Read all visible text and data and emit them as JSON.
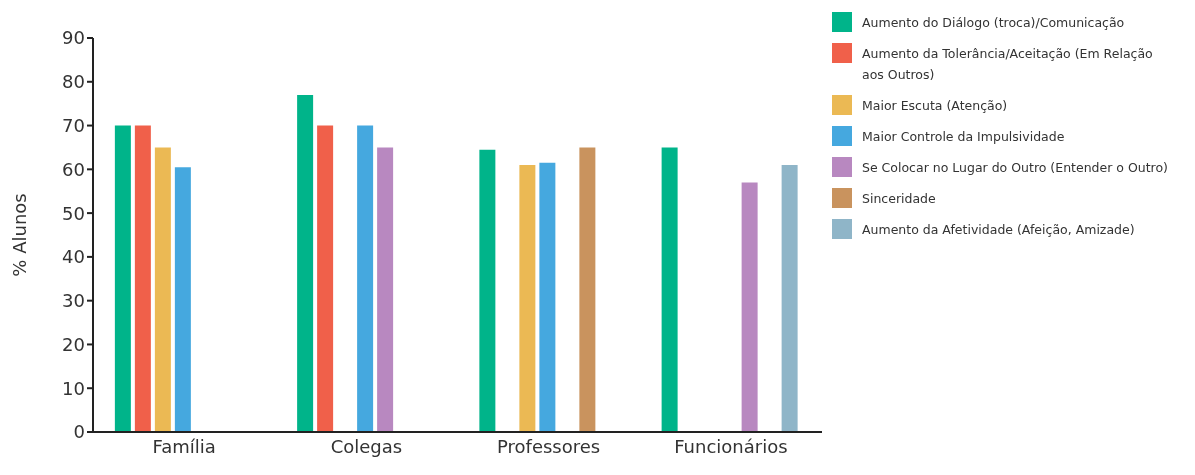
{
  "chart_data": {
    "type": "bar",
    "ylabel": "% Alunos",
    "categories": [
      "Família",
      "Colegas",
      "Professores",
      "Funcionários"
    ],
    "series": [
      {
        "name": "Aumento do Diálogo (troca)/Comunicação",
        "color": "#00b48a",
        "values": [
          70,
          77,
          64.5,
          65
        ]
      },
      {
        "name": "Aumento da Tolerância/Aceitação (Em Relação aos Outros)",
        "color": "#f0604a",
        "values": [
          70,
          70,
          null,
          null
        ]
      },
      {
        "name": "Maior Escuta (Atenção)",
        "color": "#ebb954",
        "values": [
          65,
          null,
          61,
          null
        ]
      },
      {
        "name": "Maior Controle da Impulsividade",
        "color": "#45a8df",
        "values": [
          60.5,
          70,
          61.5,
          null
        ]
      },
      {
        "name": "Se Colocar no Lugar do Outro (Entender o Outro)",
        "color": "#b888c0",
        "values": [
          null,
          65,
          null,
          57
        ]
      },
      {
        "name": "Sinceridade",
        "color": "#c9935e",
        "values": [
          null,
          null,
          65,
          null
        ]
      },
      {
        "name": "Aumento da Afetividade (Afeição, Amizade)",
        "color": "#8fb5c8",
        "values": [
          null,
          null,
          null,
          61
        ]
      }
    ],
    "ylim": [
      0,
      90
    ],
    "yticks": [
      0,
      10,
      20,
      30,
      40,
      50,
      60,
      70,
      80,
      90
    ],
    "legend": "right"
  }
}
